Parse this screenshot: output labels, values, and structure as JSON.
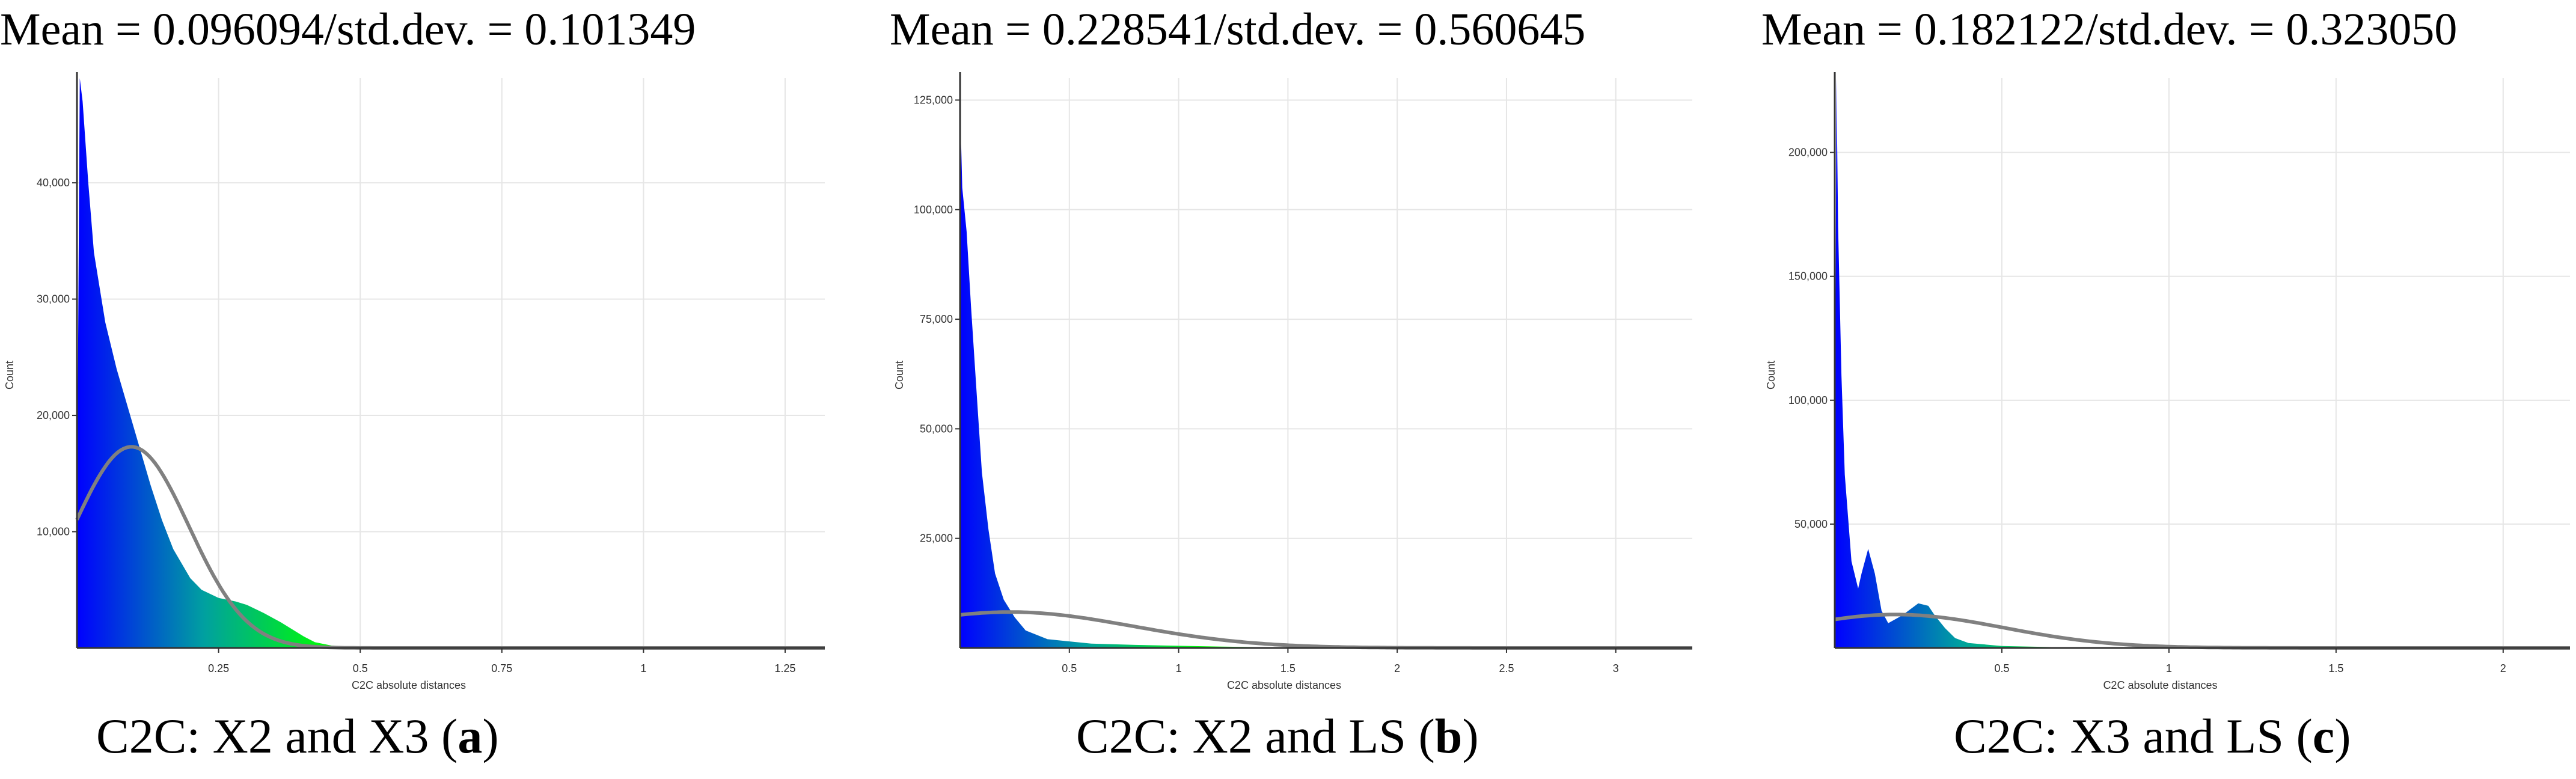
{
  "panels": [
    {
      "stat_title": "Mean = 0.096094/std.dev. = 0.101349",
      "caption_prefix": "C2C: X2 and X3 (",
      "caption_letter": "a",
      "caption_suffix": ")"
    },
    {
      "stat_title": "Mean = 0.228541/std.dev. = 0.560645",
      "caption_prefix": "C2C: X2 and LS (",
      "caption_letter": "b",
      "caption_suffix": ")"
    },
    {
      "stat_title": "Mean = 0.182122/std.dev. = 0.323050",
      "caption_prefix": "C2C: X3 and LS (",
      "caption_letter": "c",
      "caption_suffix": ")"
    }
  ],
  "colors": {
    "low": "#0000ff",
    "mid": "#00a0a0",
    "high": "#00ff00",
    "fit_curve": "#808080",
    "grid": "#e6e6e6",
    "axis": "#333333"
  },
  "chart_data": [
    {
      "type": "area",
      "xlabel": "C2C absolute distances",
      "ylabel": "Count",
      "xlim": [
        0,
        1.32
      ],
      "ylim": [
        0,
        49000
      ],
      "xticks": [
        0.25,
        0.5,
        0.75,
        1,
        1.25
      ],
      "xtick_labels": [
        "0.25",
        "0.5",
        "0.75",
        "1",
        "1.25"
      ],
      "yticks": [
        10000,
        20000,
        30000,
        40000
      ],
      "ytick_labels": [
        "10,000",
        "20,000",
        "30,000",
        "40,000"
      ],
      "grid": true,
      "histogram": {
        "x": [
          0.0,
          0.005,
          0.01,
          0.02,
          0.03,
          0.05,
          0.07,
          0.1,
          0.13,
          0.15,
          0.17,
          0.2,
          0.22,
          0.25,
          0.28,
          0.3,
          0.33,
          0.36,
          0.38,
          0.4,
          0.42,
          0.45,
          0.5,
          0.6,
          0.8,
          1.0,
          1.3
        ],
        "y": [
          10000,
          49000,
          47000,
          40000,
          34000,
          28000,
          24000,
          19000,
          14000,
          11000,
          8500,
          6000,
          5000,
          4300,
          4000,
          3700,
          3000,
          2200,
          1600,
          1000,
          500,
          200,
          50,
          0,
          0,
          0,
          0
        ]
      },
      "fit_curve": {
        "mean": 0.096094,
        "std": 0.101349,
        "peak": 17300
      }
    },
    {
      "type": "area",
      "xlabel": "C2C absolute distances",
      "ylabel": "Count",
      "xlim": [
        0,
        3.35
      ],
      "ylim": [
        0,
        130000
      ],
      "xticks": [
        0.5,
        1,
        1.5,
        2,
        2.5,
        3
      ],
      "xtick_labels": [
        "0.5",
        "1",
        "1.5",
        "2",
        "2.5",
        "3"
      ],
      "yticks": [
        25000,
        50000,
        75000,
        100000,
        125000
      ],
      "ytick_labels": [
        "25,000",
        "50,000",
        "75,000",
        "100,000",
        "125,000"
      ],
      "grid": true,
      "histogram": {
        "x": [
          0.0,
          0.005,
          0.01,
          0.03,
          0.05,
          0.08,
          0.1,
          0.13,
          0.16,
          0.2,
          0.25,
          0.3,
          0.4,
          0.6,
          0.8,
          1.0,
          1.2,
          1.5,
          2.0,
          3.35
        ],
        "y": [
          85000,
          115000,
          105000,
          95000,
          78000,
          55000,
          40000,
          27000,
          17000,
          11000,
          7000,
          4000,
          2000,
          1000,
          700,
          500,
          300,
          100,
          0,
          0
        ]
      },
      "fit_curve": {
        "mean": 0.228541,
        "std": 0.560645,
        "peak": 8200
      }
    },
    {
      "type": "area",
      "xlabel": "C2C absolute distances",
      "ylabel": "Count",
      "xlim": [
        0,
        2.2
      ],
      "ylim": [
        0,
        230000
      ],
      "xticks": [
        0.5,
        1,
        1.5,
        2
      ],
      "xtick_labels": [
        "0.5",
        "1",
        "1.5",
        "2"
      ],
      "yticks": [
        50000,
        100000,
        150000,
        200000
      ],
      "ytick_labels": [
        "50,000",
        "100,000",
        "150,000",
        "200,000"
      ],
      "grid": true,
      "histogram": {
        "x": [
          0.0,
          0.005,
          0.01,
          0.02,
          0.03,
          0.05,
          0.07,
          0.08,
          0.1,
          0.12,
          0.14,
          0.16,
          0.2,
          0.25,
          0.28,
          0.3,
          0.33,
          0.36,
          0.4,
          0.5,
          0.7,
          1.0,
          2.2
        ],
        "y": [
          40000,
          230000,
          170000,
          110000,
          70000,
          35000,
          24000,
          30000,
          40000,
          30000,
          15000,
          10000,
          13000,
          18000,
          17000,
          13000,
          8000,
          4000,
          2000,
          800,
          200,
          0,
          0
        ]
      },
      "fit_curve": {
        "mean": 0.182122,
        "std": 0.32305,
        "peak": 13500
      }
    }
  ]
}
